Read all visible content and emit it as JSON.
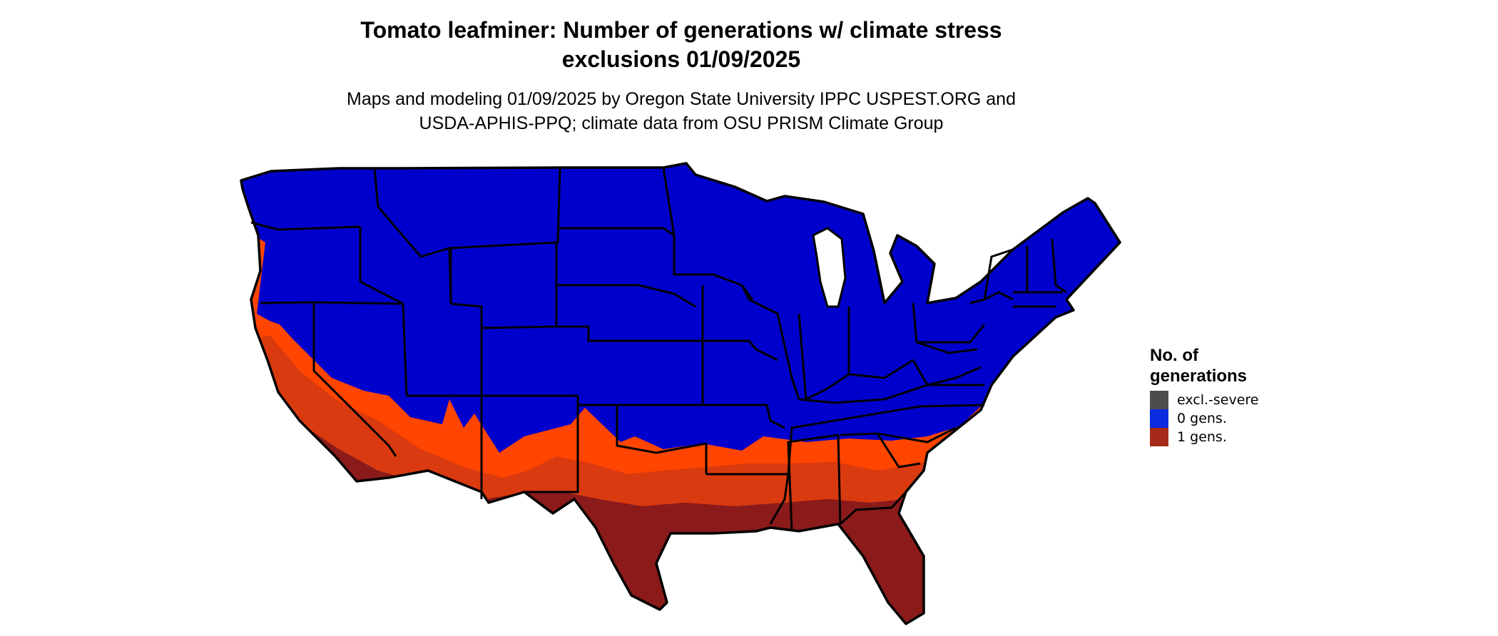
{
  "title": {
    "line1": "Tomato leafminer: Number of generations w/ climate stress",
    "line2": "exclusions 01/09/2025"
  },
  "subtitle": {
    "line1": "Maps and modeling 01/09/2025 by Oregon State University IPPC USPEST.ORG and",
    "line2": "USDA-APHIS-PPQ; climate data from OSU PRISM Climate Group"
  },
  "legend": {
    "title_line1": "No. of",
    "title_line2": "generations",
    "items": [
      {
        "label": "excl.-severe",
        "color": "#4d4d4d"
      },
      {
        "label": "0 gens.",
        "color": "#0a2be0"
      },
      {
        "label": "1 gens.",
        "color": "#a52a1a"
      }
    ]
  },
  "map_colors": {
    "zero_generations": "#0000cc",
    "gradient_light": "#ff4500",
    "gradient_mid": "#d93a10",
    "gradient_dark": "#8b1a1a",
    "border": "#000000"
  }
}
